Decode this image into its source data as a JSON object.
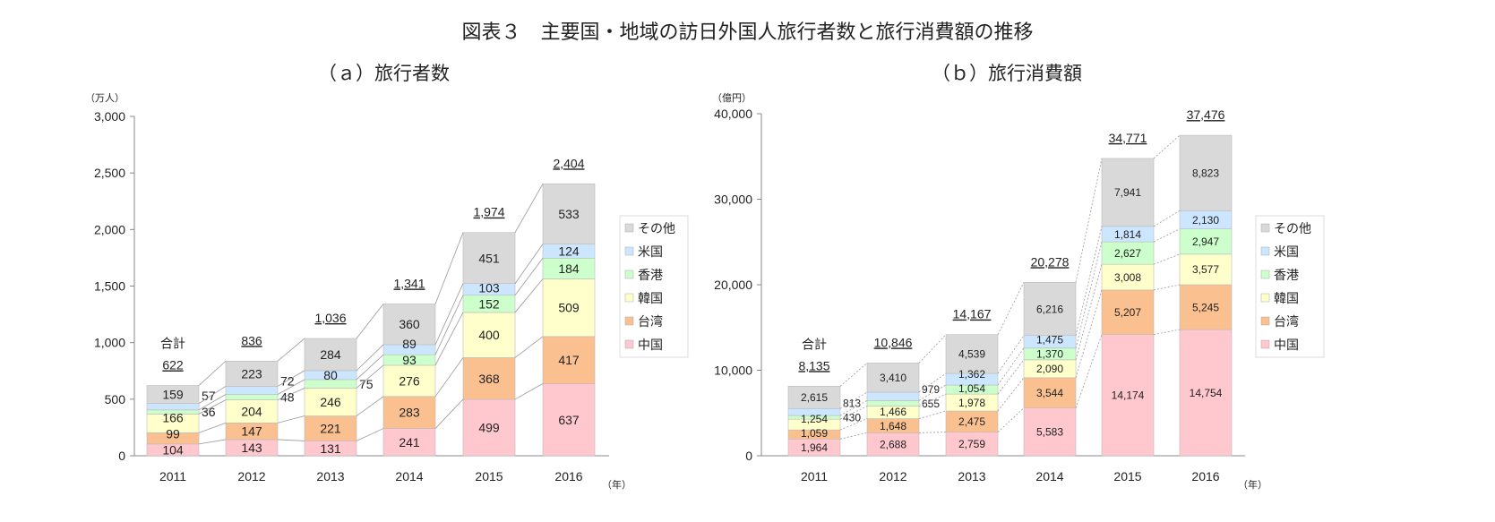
{
  "title": "図表３　主要国・地域の訪日外国人旅行者数と旅行消費額の推移",
  "colors": {
    "中国": "#ffc7ce",
    "台湾": "#fac090",
    "韓国": "#ffffcc",
    "香港": "#ccffcc",
    "米国": "#cce6ff",
    "その他": "#d9d9d9"
  },
  "chart_data": [
    {
      "type": "bar",
      "stacked": true,
      "title": "（ａ）旅行者数",
      "ylabel": "（万人）",
      "xlabel": "（年）",
      "ylim": [
        0,
        3000
      ],
      "yticks": [
        "0",
        "500",
        "1,000",
        "1,500",
        "2,000",
        "2,500",
        "3,000"
      ],
      "connector": "solid",
      "categories": [
        "2011",
        "2012",
        "2013",
        "2014",
        "2015",
        "2016"
      ],
      "total_label": "合計",
      "totals": [
        "622",
        "836",
        "1,036",
        "1,341",
        "1,974",
        "2,404"
      ],
      "series": [
        {
          "name": "中国",
          "values": [
            104,
            143,
            131,
            241,
            499,
            637
          ],
          "labels": [
            "104",
            "143",
            "131",
            "241",
            "499",
            "637"
          ]
        },
        {
          "name": "台湾",
          "values": [
            99,
            147,
            221,
            283,
            368,
            417
          ],
          "labels": [
            "99",
            "147",
            "221",
            "283",
            "368",
            "417"
          ]
        },
        {
          "name": "韓国",
          "values": [
            166,
            204,
            246,
            276,
            400,
            509
          ],
          "labels": [
            "166",
            "204",
            "246",
            "276",
            "400",
            "509"
          ]
        },
        {
          "name": "香港",
          "values": [
            36,
            48,
            75,
            93,
            152,
            184
          ],
          "labels": [
            "36",
            "48",
            "75",
            "93",
            "152",
            "184"
          ]
        },
        {
          "name": "米国",
          "values": [
            57,
            72,
            80,
            89,
            103,
            124
          ],
          "labels": [
            "57",
            "72",
            "80",
            "89",
            "103",
            "124"
          ]
        },
        {
          "name": "その他",
          "values": [
            159,
            223,
            284,
            360,
            451,
            533
          ],
          "labels": [
            "159",
            "223",
            "284",
            "360",
            "451",
            "533"
          ]
        }
      ]
    },
    {
      "type": "bar",
      "stacked": true,
      "title": "（ｂ）旅行消費額",
      "ylabel": "（億円）",
      "xlabel": "（年）",
      "ylim": [
        0,
        40000
      ],
      "yticks": [
        "0",
        "10,000",
        "20,000",
        "30,000",
        "40,000"
      ],
      "connector": "dashed",
      "categories": [
        "2011",
        "2012",
        "2013",
        "2014",
        "2015",
        "2016"
      ],
      "total_label": "合計",
      "totals": [
        "8,135",
        "10,846",
        "14,167",
        "20,278",
        "34,771",
        "37,476"
      ],
      "series": [
        {
          "name": "中国",
          "values": [
            1964,
            2688,
            2759,
            5583,
            14174,
            14754
          ],
          "labels": [
            "1,964",
            "2,688",
            "2,759",
            "5,583",
            "14,174",
            "14,754"
          ]
        },
        {
          "name": "台湾",
          "values": [
            1059,
            1648,
            2475,
            3544,
            5207,
            5245
          ],
          "labels": [
            "1,059",
            "1,648",
            "2,475",
            "3,544",
            "5,207",
            "5,245"
          ]
        },
        {
          "name": "韓国",
          "values": [
            1254,
            1466,
            1978,
            2090,
            3008,
            3577
          ],
          "labels": [
            "1,254",
            "1,466",
            "1,978",
            "2,090",
            "3,008",
            "3,577"
          ]
        },
        {
          "name": "香港",
          "values": [
            430,
            655,
            1054,
            1370,
            2627,
            2947
          ],
          "labels": [
            "430",
            "655",
            "1,054",
            "1,370",
            "2,627",
            "2,947"
          ]
        },
        {
          "name": "米国",
          "values": [
            813,
            979,
            1362,
            1475,
            1814,
            2130
          ],
          "labels": [
            "813",
            "979",
            "1,362",
            "1,475",
            "1,814",
            "2,130"
          ]
        },
        {
          "name": "その他",
          "values": [
            2615,
            3410,
            4539,
            6216,
            7941,
            8823
          ],
          "labels": [
            "2,615",
            "3,410",
            "4,539",
            "6,216",
            "7,941",
            "8,823"
          ]
        }
      ]
    }
  ]
}
